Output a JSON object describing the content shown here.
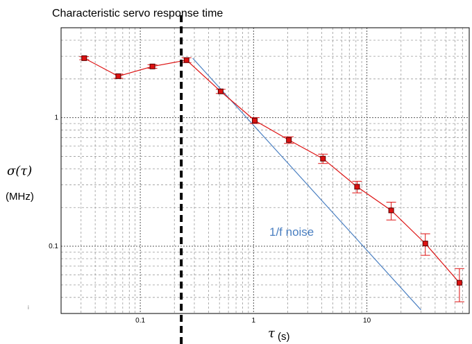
{
  "chart_data": {
    "type": "scatter",
    "title": "Characteristic servo response time",
    "xlabel_symbol": "τ",
    "xlabel_unit": "(s)",
    "ylabel_symbol": "σ(τ)",
    "ylabel_unit": "(MHz)",
    "x_scale": "log",
    "y_scale": "log",
    "xlim": [
      0.02,
      80
    ],
    "ylim": [
      0.03,
      5
    ],
    "grid": true,
    "x_ticks": [
      {
        "value": 0.1,
        "label": "0.1"
      },
      {
        "value": 1,
        "label": "1"
      },
      {
        "value": 10,
        "label": "10"
      }
    ],
    "y_ticks": [
      {
        "value": 1,
        "label": "1"
      },
      {
        "value": 0.1,
        "label": "0.1"
      }
    ],
    "series": [
      {
        "color": "#dd1111",
        "marker": "square",
        "points": [
          {
            "x": 0.032,
            "y": 2.9,
            "err": 0.08
          },
          {
            "x": 0.064,
            "y": 2.1,
            "err": 0.08
          },
          {
            "x": 0.128,
            "y": 2.5,
            "err": 0.08
          },
          {
            "x": 0.256,
            "y": 2.8,
            "err": 0.12
          },
          {
            "x": 0.512,
            "y": 1.6,
            "err": 0.06
          },
          {
            "x": 1.024,
            "y": 0.95,
            "err": 0.05
          },
          {
            "x": 2.048,
            "y": 0.67,
            "err": 0.04
          },
          {
            "x": 4.096,
            "y": 0.48,
            "err": 0.04
          },
          {
            "x": 8.192,
            "y": 0.29,
            "err": 0.03
          },
          {
            "x": 16.384,
            "y": 0.19,
            "err": 0.03
          },
          {
            "x": 32.768,
            "y": 0.105,
            "err": 0.02
          },
          {
            "x": 65.536,
            "y": 0.052,
            "err": 0.015
          }
        ]
      }
    ],
    "reference_line": {
      "label": "1/f noise",
      "color": "#4a7fc1",
      "from": {
        "x": 0.29,
        "y": 2.9
      },
      "to": {
        "x": 30,
        "y": 0.032
      }
    },
    "servo_time_marker": {
      "x": 0.23
    },
    "stray_mark": "i"
  }
}
